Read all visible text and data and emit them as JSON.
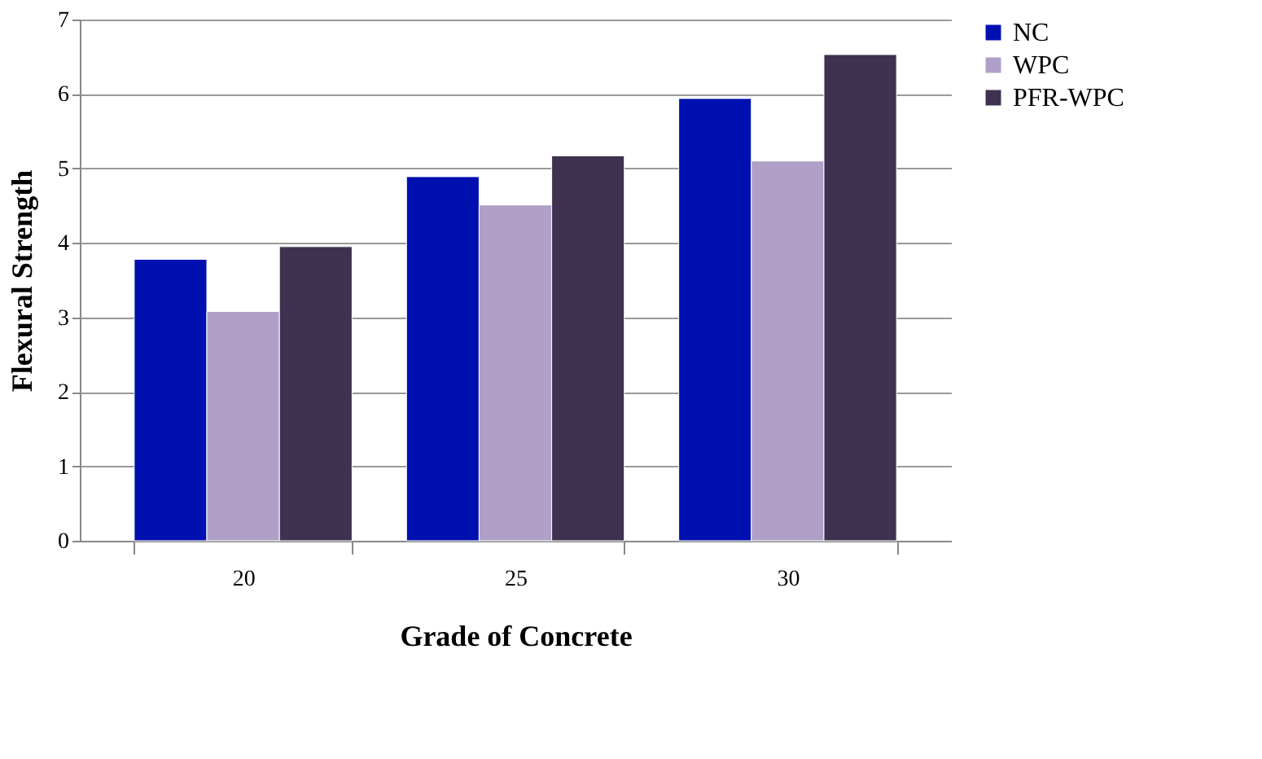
{
  "chart_data": {
    "type": "bar",
    "xlabel": "Grade of Concrete",
    "ylabel": "Flexural Strength",
    "categories": [
      "20",
      "25",
      "30"
    ],
    "series": [
      {
        "name": "NC",
        "color": "#0010b0",
        "values": [
          3.78,
          4.89,
          5.94
        ]
      },
      {
        "name": "WPC",
        "color": "#b0a0c8",
        "values": [
          3.08,
          4.51,
          5.1
        ]
      },
      {
        "name": "PFR-WPC",
        "color": "#3f3150",
        "values": [
          3.95,
          5.17,
          6.53
        ]
      }
    ],
    "ylim": [
      0,
      7
    ],
    "yticks": [
      0,
      1,
      2,
      3,
      4,
      5,
      6,
      7
    ],
    "grid": "y",
    "legend": "right"
  }
}
